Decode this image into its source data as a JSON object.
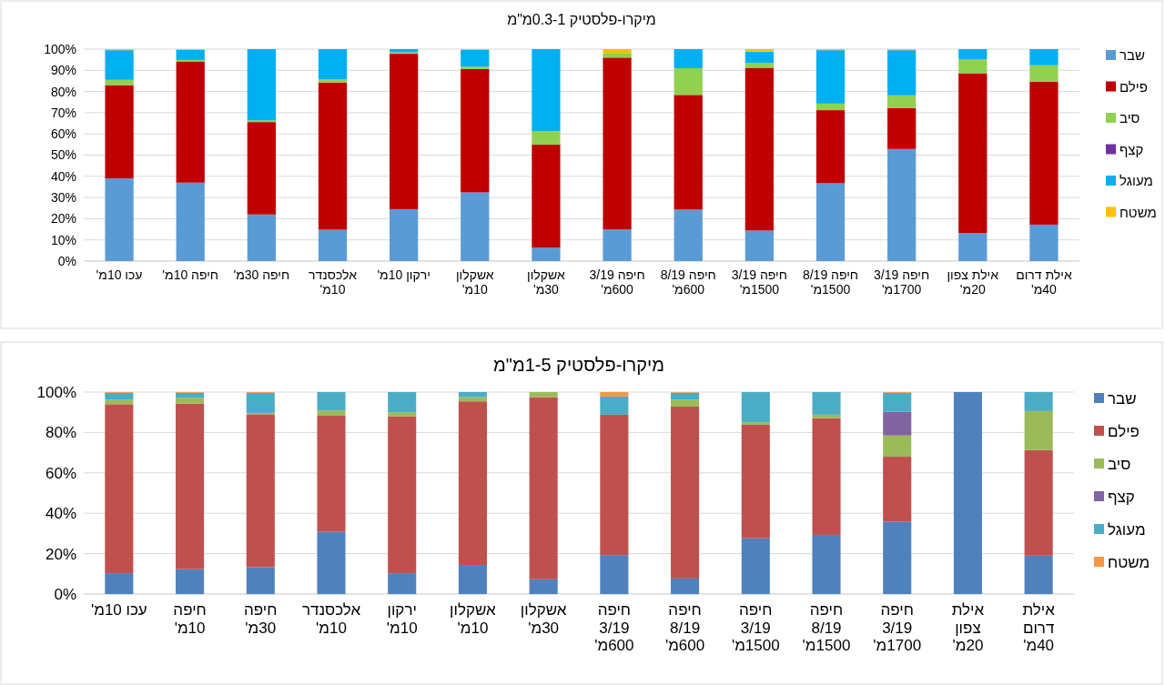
{
  "chart_data": [
    {
      "type": "bar",
      "stacked": true,
      "title": "מיקרו-פלסטיק 0.3-1מ\"מ",
      "categories": [
        "עכו 10מ'",
        "חיפה 10מ'",
        "חיפה 30מ'",
        "אלכסנדר 10מ'",
        "ירקון 10מ'",
        "אשקלון 10מ'",
        "אשקלון 30מ'",
        "חיפה 3/19 600מ'",
        "חיפה 8/19 600מ'",
        "חיפה 3/19 1500מ'",
        "חיפה 8/19 1500מ'",
        "חיפה 3/19 1700מ'",
        "אילת צפון 20מ'",
        "אילת דרום 40מ'"
      ],
      "series": [
        {
          "name": "שבר",
          "color": "#5b9bd5",
          "values": [
            39,
            37,
            22,
            14.8,
            24.5,
            32.4,
            6.3,
            14.9,
            24.3,
            14.4,
            36.7,
            52.9,
            13.2,
            17.2
          ]
        },
        {
          "name": "פילם",
          "color": "#c00000",
          "values": [
            44,
            57.2,
            43.6,
            69.5,
            73.3,
            58.2,
            48.6,
            81.1,
            54.1,
            76.8,
            34.5,
            19.3,
            75.4,
            67.5
          ]
        },
        {
          "name": "סיב",
          "color": "#92d050",
          "values": [
            2.5,
            0.7,
            0.8,
            1.4,
            0.7,
            1.1,
            6.4,
            2.2,
            12.6,
            2.3,
            3.1,
            6,
            6.7,
            7.7
          ]
        },
        {
          "name": "קצף",
          "color": "#7030a0",
          "values": [
            0,
            0,
            0,
            0,
            0,
            0,
            0,
            0,
            0,
            0,
            0,
            0,
            0,
            0
          ]
        },
        {
          "name": "מעוגל",
          "color": "#00b0f0",
          "values": [
            14,
            4.8,
            33.6,
            14.3,
            1.5,
            8,
            38.7,
            0,
            9,
            5.3,
            25.2,
            21.3,
            4.7,
            7.6
          ]
        },
        {
          "name": "משטח",
          "color": "#ffc000",
          "values": [
            0.5,
            0.3,
            0,
            0,
            0,
            0.3,
            0,
            1.8,
            0,
            1.2,
            0.5,
            0.5,
            0,
            0
          ]
        }
      ],
      "ylim": [
        0,
        100
      ],
      "yticks": [
        {
          "value": 0,
          "label": "0%"
        },
        {
          "value": 10,
          "label": "10%"
        },
        {
          "value": 20,
          "label": "20%"
        },
        {
          "value": 30,
          "label": "30%"
        },
        {
          "value": 40,
          "label": "40%"
        },
        {
          "value": 50,
          "label": "50%"
        },
        {
          "value": 60,
          "label": "60%"
        },
        {
          "value": 70,
          "label": "70%"
        },
        {
          "value": 80,
          "label": "80%"
        },
        {
          "value": 90,
          "label": "90%"
        },
        {
          "value": 100,
          "label": "100%"
        }
      ],
      "grid": "y",
      "legend": "right"
    },
    {
      "type": "bar",
      "stacked": true,
      "title": "מיקרו-פלסטיק 1-5מ\"מ",
      "categories": [
        "עכו 10מ'",
        "חיפה 10מ'",
        "חיפה 30מ'",
        "אלכסנדר 10מ'",
        "ירקון 10מ'",
        "אשקלון 10מ'",
        "אשקלון 30מ'",
        "חיפה 3/19 600מ'",
        "חיפה 8/19 600מ'",
        "חיפה 3/19 1500מ'",
        "חיפה 8/19 1500מ'",
        "חיפה 3/19 1700מ'",
        "אילת צפון 20מ'",
        "אילת דרום 40מ'"
      ],
      "series": [
        {
          "name": "שבר",
          "color": "#4f81bd",
          "values": [
            10.3,
            12.3,
            13.3,
            30.8,
            10.3,
            14.4,
            7.3,
            19.3,
            7.7,
            27.6,
            29.3,
            35.9,
            100,
            19
          ]
        },
        {
          "name": "פילם",
          "color": "#c0504d",
          "values": [
            83.7,
            82,
            75.7,
            57.5,
            77.6,
            81,
            90.2,
            69.5,
            85.1,
            56.2,
            57.8,
            32.1,
            0,
            52.3
          ]
        },
        {
          "name": "סיב",
          "color": "#9bbb59",
          "values": [
            2.3,
            2.9,
            0.7,
            2.6,
            2.1,
            2.1,
            2.5,
            0,
            3.5,
            1.3,
            1.7,
            10.5,
            0,
            19.3
          ]
        },
        {
          "name": "קצף",
          "color": "#8064a2",
          "values": [
            0,
            0,
            0,
            0,
            0,
            0,
            0,
            0,
            0,
            0,
            0,
            11.7,
            0,
            0
          ]
        },
        {
          "name": "מעוגל",
          "color": "#4bacc6",
          "values": [
            3.3,
            2.4,
            9.9,
            9.1,
            10,
            2.5,
            0,
            9,
            3.4,
            14.9,
            11.2,
            9.4,
            0,
            9.4
          ]
        },
        {
          "name": "משטח",
          "color": "#f79646",
          "values": [
            0.4,
            0.4,
            0.4,
            0,
            0,
            0,
            0,
            2.2,
            0.3,
            0,
            0,
            0.4,
            0,
            0
          ]
        }
      ],
      "ylim": [
        0,
        100
      ],
      "yticks": [
        {
          "value": 0,
          "label": "0%"
        },
        {
          "value": 20,
          "label": "20%"
        },
        {
          "value": 40,
          "label": "40%"
        },
        {
          "value": 60,
          "label": "60%"
        },
        {
          "value": 80,
          "label": "80%"
        },
        {
          "value": 100,
          "label": "100%"
        }
      ],
      "grid": "y",
      "legend": "right"
    }
  ]
}
